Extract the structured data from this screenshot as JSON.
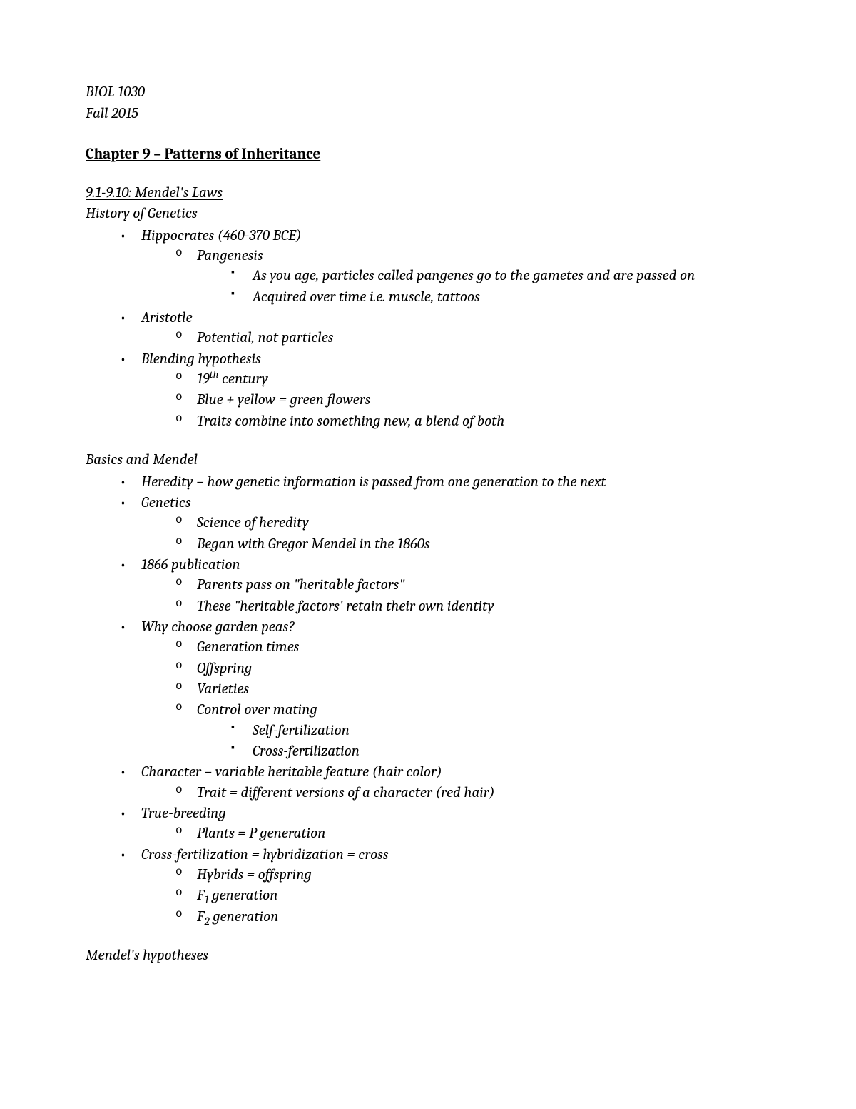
{
  "course": "BIOL 1030",
  "term": "Fall 2015",
  "chapterTitle": "Chapter 9 – Patterns of Inheritance",
  "section1": {
    "heading": "9.1-9.10: Mendel's Laws",
    "subheading": "History of Genetics",
    "items": [
      {
        "text": "Hippocrates (460-370 BCE)",
        "children": [
          {
            "text": "Pangenesis",
            "children": [
              {
                "text": "As you age, particles called pangenes go to the gametes and are passed on"
              },
              {
                "text": "Acquired over time i.e. muscle, tattoos"
              }
            ]
          }
        ]
      },
      {
        "text": "Aristotle",
        "children": [
          {
            "text": "Potential, not particles"
          }
        ]
      },
      {
        "text": "Blending hypothesis",
        "children": [
          {
            "text": "19",
            "sup": "th",
            "tail": " century"
          },
          {
            "text": "Blue + yellow = green flowers"
          },
          {
            "text": "Traits combine into something new, a blend of both"
          }
        ]
      }
    ]
  },
  "section2": {
    "subheading": "Basics and Mendel",
    "items": [
      {
        "text": "Heredity – how genetic information is passed from one generation to the next"
      },
      {
        "text": "Genetics",
        "children": [
          {
            "text": "Science of heredity"
          },
          {
            "text": "Began with Gregor Mendel in the 1860s"
          }
        ]
      },
      {
        "text": "1866 publication",
        "children": [
          {
            "text": "Parents pass on \"heritable factors\""
          },
          {
            "text": "These \"heritable factors' retain their own identity"
          }
        ]
      },
      {
        "text": "Why choose garden peas?",
        "children": [
          {
            "text": "Generation times"
          },
          {
            "text": "Offspring"
          },
          {
            "text": "Varieties"
          },
          {
            "text": "Control over mating",
            "children": [
              {
                "text": "Self-fertilization"
              },
              {
                "text": "Cross-fertilization"
              }
            ]
          }
        ]
      },
      {
        "text": "Character – variable heritable feature (hair color)",
        "children": [
          {
            "text": "Trait = different versions of a character (red hair)"
          }
        ]
      },
      {
        "text": "True-breeding",
        "children": [
          {
            "text": "Plants = P generation"
          }
        ]
      },
      {
        "text": "Cross-fertilization = hybridization = cross",
        "children": [
          {
            "text": "Hybrids = offspring"
          },
          {
            "text": "F",
            "sub": "1",
            "tail": " generation"
          },
          {
            "text": "F",
            "sub": "2",
            "tail": " generation"
          }
        ]
      }
    ]
  },
  "section3": {
    "subheading": "Mendel's hypotheses"
  }
}
